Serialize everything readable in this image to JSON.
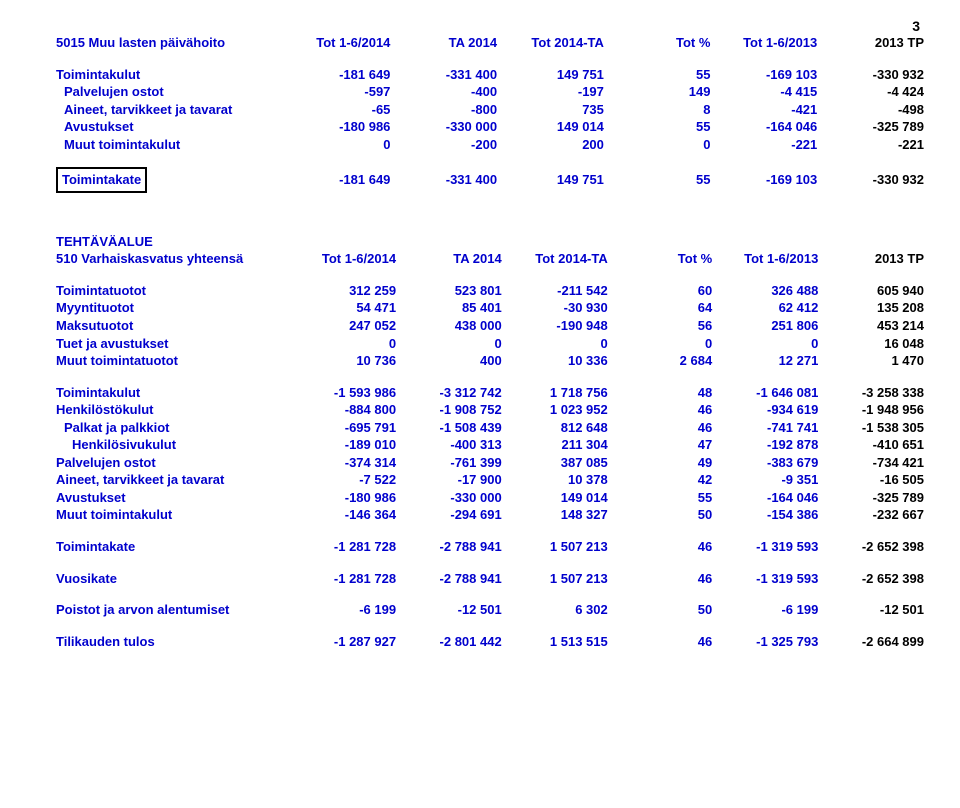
{
  "page_number": "3",
  "colors": {
    "blue": "#0000cd",
    "black": "#000000"
  },
  "section1": {
    "title_left": "5015 Muu lasten päivähoito",
    "headers": [
      "Tot 1-6/2014",
      "TA 2014",
      "Tot 2014-TA",
      "Tot %",
      "Tot 1-6/2013",
      "2013 TP"
    ],
    "rows": [
      {
        "label": "Toimintakulut",
        "indent": 0,
        "v": [
          "-181 649",
          "-331 400",
          "149 751",
          "55",
          "-169 103",
          "-330 932"
        ]
      },
      {
        "label": "Palvelujen ostot",
        "indent": 1,
        "v": [
          "-597",
          "-400",
          "-197",
          "149",
          "-4 415",
          "-4 424"
        ]
      },
      {
        "label": "Aineet, tarvikkeet ja tavarat",
        "indent": 1,
        "v": [
          "-65",
          "-800",
          "735",
          "8",
          "-421",
          "-498"
        ]
      },
      {
        "label": "Avustukset",
        "indent": 1,
        "v": [
          "-180 986",
          "-330 000",
          "149 014",
          "55",
          "-164 046",
          "-325 789"
        ]
      },
      {
        "label": "Muut toimintakulut",
        "indent": 1,
        "v": [
          "0",
          "-200",
          "200",
          "0",
          "-221",
          "-221"
        ]
      }
    ],
    "kate": {
      "label": "Toimintakate",
      "v": [
        "-181 649",
        "-331 400",
        "149 751",
        "55",
        "-169 103",
        "-330 932"
      ]
    }
  },
  "section2": {
    "heading": "TEHTÄVÄALUE",
    "title_left": "510 Varhaiskasvatus yhteensä",
    "headers": [
      "Tot 1-6/2014",
      "TA 2014",
      "Tot 2014-TA",
      "Tot %",
      "Tot 1-6/2013",
      "2013 TP"
    ],
    "tuotot": [
      {
        "label": "Toimintatuotot",
        "indent": 0,
        "v": [
          "312 259",
          "523 801",
          "-211 542",
          "60",
          "326 488",
          "605 940"
        ]
      },
      {
        "label": "Myyntituotot",
        "indent": 0,
        "v": [
          "54 471",
          "85 401",
          "-30 930",
          "64",
          "62 412",
          "135 208"
        ]
      },
      {
        "label": "Maksutuotot",
        "indent": 0,
        "v": [
          "247 052",
          "438 000",
          "-190 948",
          "56",
          "251 806",
          "453 214"
        ]
      },
      {
        "label": "Tuet ja avustukset",
        "indent": 0,
        "v": [
          "0",
          "0",
          "0",
          "0",
          "0",
          "16 048"
        ]
      },
      {
        "label": "Muut toimintatuotot",
        "indent": 0,
        "v": [
          "10 736",
          "400",
          "10 336",
          "2 684",
          "12 271",
          "1 470"
        ]
      }
    ],
    "kulut": [
      {
        "label": "Toimintakulut",
        "indent": 0,
        "v": [
          "-1 593 986",
          "-3 312 742",
          "1 718 756",
          "48",
          "-1 646 081",
          "-3 258 338"
        ]
      },
      {
        "label": "Henkilöstökulut",
        "indent": 0,
        "v": [
          "-884 800",
          "-1 908 752",
          "1 023 952",
          "46",
          "-934 619",
          "-1 948 956"
        ]
      },
      {
        "label": "Palkat ja palkkiot",
        "indent": 1,
        "v": [
          "-695 791",
          "-1 508 439",
          "812 648",
          "46",
          "-741 741",
          "-1 538 305"
        ]
      },
      {
        "label": "Henkilösivukulut",
        "indent": 2,
        "v": [
          "-189 010",
          "-400 313",
          "211 304",
          "47",
          "-192 878",
          "-410 651"
        ]
      },
      {
        "label": "Palvelujen ostot",
        "indent": 0,
        "v": [
          "-374 314",
          "-761 399",
          "387 085",
          "49",
          "-383 679",
          "-734 421"
        ]
      },
      {
        "label": "Aineet, tarvikkeet ja tavarat",
        "indent": 0,
        "v": [
          "-7 522",
          "-17 900",
          "10 378",
          "42",
          "-9 351",
          "-16 505"
        ]
      },
      {
        "label": "Avustukset",
        "indent": 0,
        "v": [
          "-180 986",
          "-330 000",
          "149 014",
          "55",
          "-164 046",
          "-325 789"
        ]
      },
      {
        "label": "Muut toimintakulut",
        "indent": 0,
        "v": [
          "-146 364",
          "-294 691",
          "148 327",
          "50",
          "-154 386",
          "-232 667"
        ]
      }
    ],
    "toimintakate": {
      "label": "Toimintakate",
      "v": [
        "-1 281 728",
        "-2 788 941",
        "1 507 213",
        "46",
        "-1 319 593",
        "-2 652 398"
      ]
    },
    "vuosikate": {
      "label": "Vuosikate",
      "v": [
        "-1 281 728",
        "-2 788 941",
        "1 507 213",
        "46",
        "-1 319 593",
        "-2 652 398"
      ]
    },
    "poistot": {
      "label": "Poistot ja arvon alentumiset",
      "v": [
        "-6 199",
        "-12 501",
        "6 302",
        "50",
        "-6 199",
        "-12 501"
      ]
    },
    "tulos": {
      "label": "Tilikauden tulos",
      "v": [
        "-1 287 927",
        "-2 801 442",
        "1 513 515",
        "46",
        "-1 325 793",
        "-2 664 899"
      ]
    }
  }
}
